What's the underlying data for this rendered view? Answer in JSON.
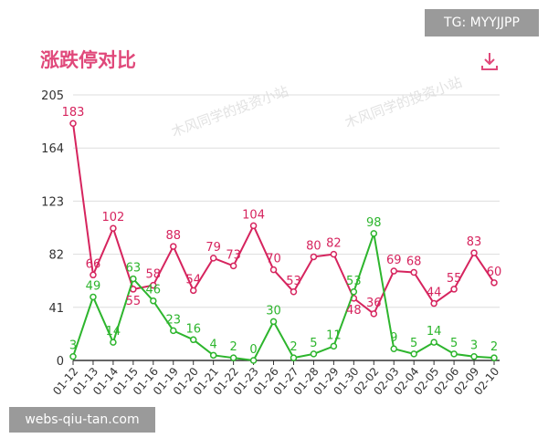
{
  "title": "涨跌停对比",
  "badge_top": "TG: MYYJJPP",
  "badge_bottom": "webs-qiu-tan.com",
  "watermark": "木风同学的投资小站",
  "icons": {
    "download": "download-icon"
  },
  "chart_data": {
    "type": "line",
    "title": "涨跌停对比",
    "categories": [
      "01-12",
      "01-13",
      "01-14",
      "01-15",
      "01-16",
      "01-19",
      "01-20",
      "01-21",
      "01-22",
      "01-23",
      "01-26",
      "01-27",
      "01-28",
      "01-29",
      "01-30",
      "02-02",
      "02-03",
      "02-04",
      "02-05",
      "02-06",
      "02-09",
      "02-10"
    ],
    "series": [
      {
        "color": "#d6245e",
        "values": [
          183,
          66,
          102,
          55,
          58,
          88,
          54,
          79,
          73,
          104,
          70,
          53,
          80,
          82,
          48,
          36,
          69,
          68,
          44,
          55,
          83,
          60
        ]
      },
      {
        "color": "#2db52d",
        "values": [
          3,
          49,
          14,
          63,
          46,
          23,
          16,
          4,
          2,
          0,
          30,
          2,
          5,
          11,
          53,
          98,
          9,
          5,
          14,
          5,
          3,
          2
        ]
      }
    ],
    "yticks": [
      0,
      41,
      82,
      123,
      164,
      205
    ],
    "ylim": [
      0,
      205
    ],
    "grid": true,
    "data_labels": true
  }
}
